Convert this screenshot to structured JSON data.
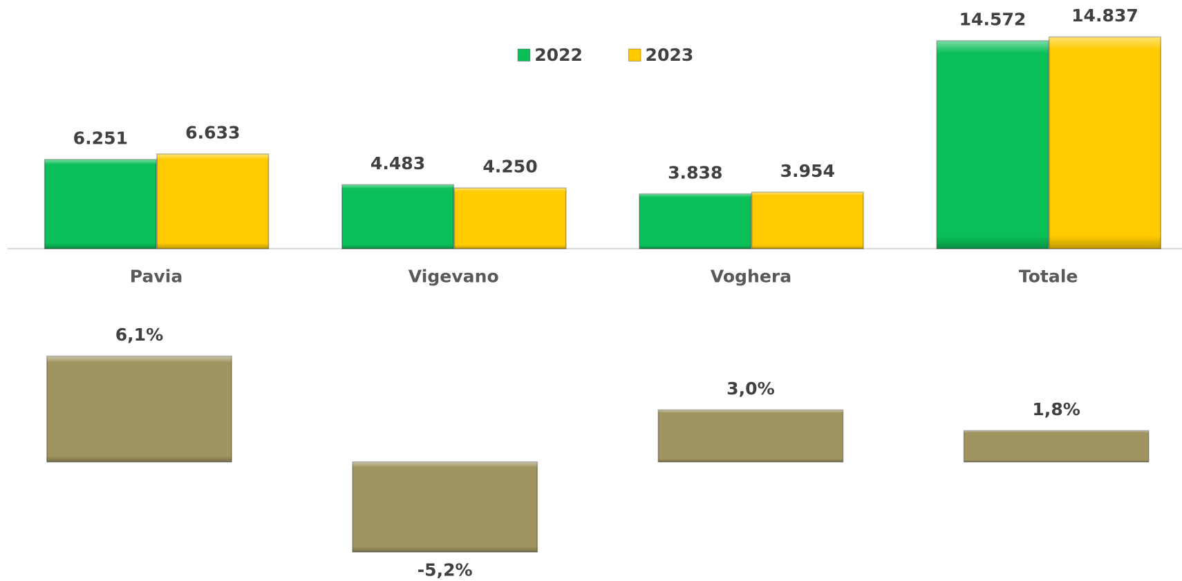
{
  "chart_data": [
    {
      "type": "bar",
      "categories": [
        "Pavia",
        "Vigevano",
        "Voghera",
        "Totale"
      ],
      "series": [
        {
          "name": "2022",
          "color": "#0abf58",
          "values": [
            6251,
            4483,
            3838,
            14572
          ],
          "value_labels": [
            "6.251",
            "4.483",
            "3.838",
            "14.572"
          ]
        },
        {
          "name": "2023",
          "color": "#ffcb00",
          "values": [
            6633,
            4250,
            3954,
            14837
          ],
          "value_labels": [
            "6.633",
            "4.250",
            "3.954",
            "14.837"
          ]
        }
      ],
      "ylim": [
        0,
        16000
      ],
      "legend": "top"
    },
    {
      "type": "bar",
      "values": [
        6.1,
        -5.2,
        3.0,
        1.8
      ],
      "value_labels": [
        "6,1%",
        "-5,2%",
        "3,0%",
        "1,8%"
      ],
      "color": "#a09560",
      "ylim": [
        -6,
        7
      ]
    }
  ]
}
